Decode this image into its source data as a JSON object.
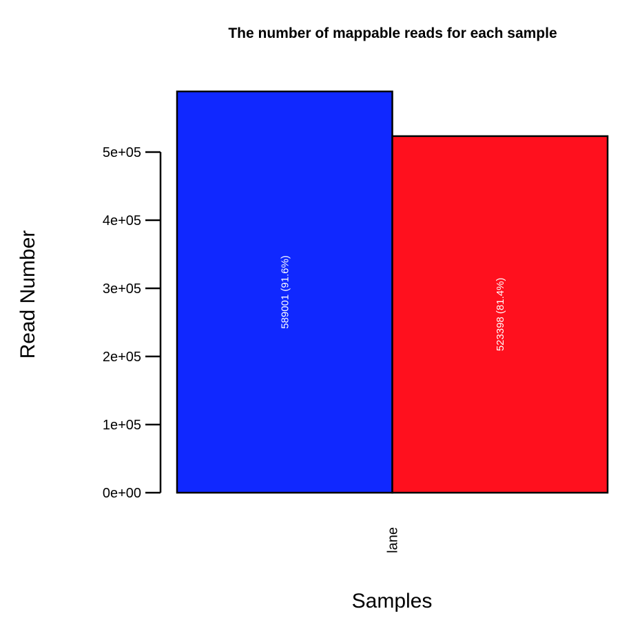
{
  "chart_data": {
    "type": "bar",
    "title": "The number of mappable reads for each sample",
    "xlabel": "Samples",
    "ylabel": "Read Number",
    "categories": [
      "lane"
    ],
    "series": [
      {
        "color": "#1028ff",
        "values": [
          589001
        ],
        "label": "589001 (91.6%)"
      },
      {
        "color": "#ff101e",
        "values": [
          523398
        ],
        "label": "523398 (81.4%)"
      }
    ],
    "yticks": [
      0,
      100000,
      200000,
      300000,
      400000,
      500000
    ],
    "ytick_labels": [
      "0e+00",
      "1e+05",
      "2e+05",
      "3e+05",
      "4e+05",
      "5e+05"
    ],
    "ylim": [
      0,
      600000
    ],
    "grid": false,
    "legend": "none"
  }
}
